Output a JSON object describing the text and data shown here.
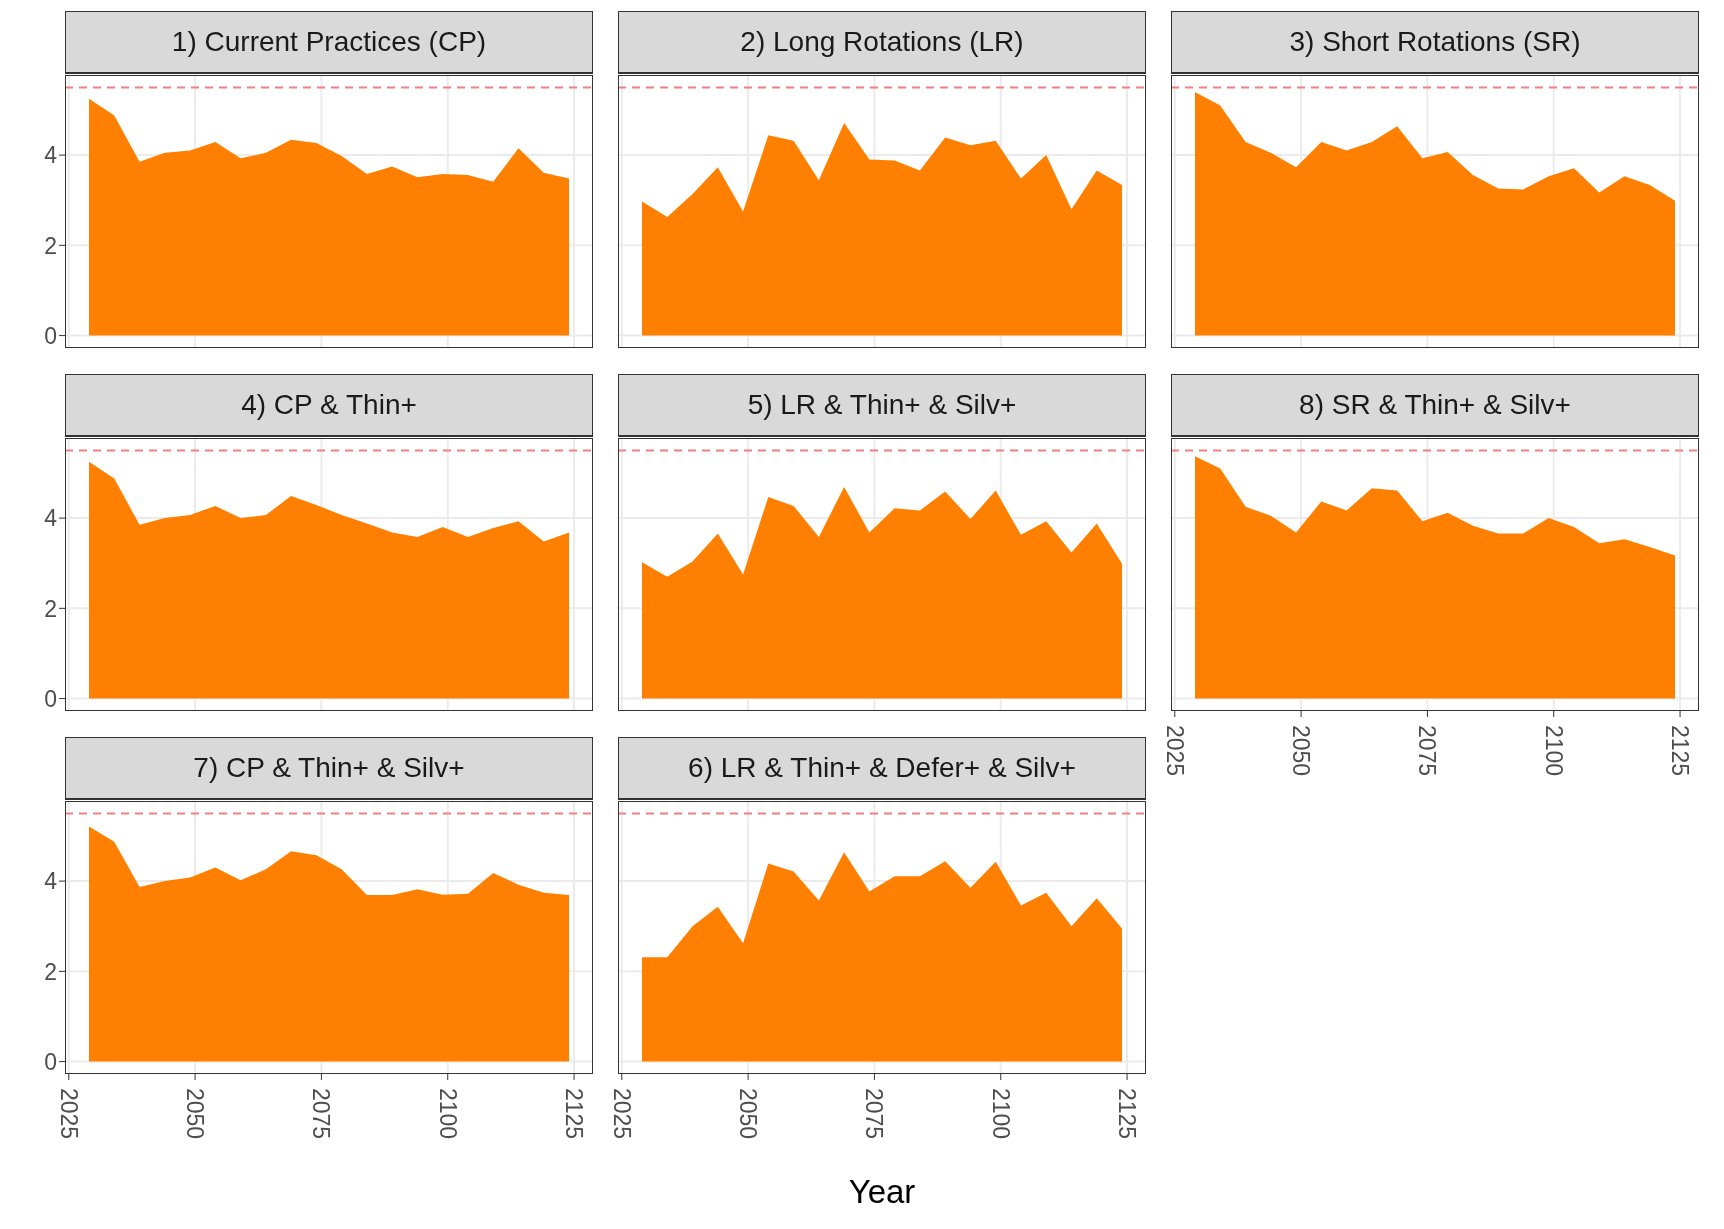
{
  "chart_data": [
    {
      "type": "area",
      "title": "1) Current Practices (CP)",
      "color": "#ff8000",
      "x": [
        2029,
        2034,
        2039,
        2044,
        2049,
        2054,
        2059,
        2064,
        2069,
        2074,
        2079,
        2084,
        2089,
        2094,
        2099,
        2104,
        2109,
        2114,
        2119,
        2124
      ],
      "values": [
        5.25,
        4.88,
        3.85,
        4.05,
        4.1,
        4.29,
        3.93,
        4.05,
        4.34,
        4.27,
        3.98,
        3.58,
        3.75,
        3.51,
        3.58,
        3.56,
        3.41,
        4.15,
        3.61,
        3.48
      ],
      "xlim": [
        2024.25,
        2128.75
      ],
      "ylim": [
        -0.275,
        5.775
      ],
      "xticks": [
        2025,
        2050,
        2075,
        2100,
        2125
      ],
      "yticks": [
        0,
        2,
        4
      ],
      "grid": true,
      "tick_labels": "y",
      "ref_lines": [
        {
          "axis": "y",
          "value": 5.5,
          "color": "#f08080",
          "line_style": "dashed"
        }
      ]
    },
    {
      "type": "area",
      "title": "2) Long Rotations (LR)",
      "color": "#ff8000",
      "x": [
        2029,
        2034,
        2039,
        2044,
        2049,
        2054,
        2059,
        2064,
        2069,
        2074,
        2079,
        2084,
        2089,
        2094,
        2099,
        2104,
        2109,
        2114,
        2119,
        2124
      ],
      "values": [
        2.97,
        2.63,
        3.14,
        3.73,
        2.75,
        4.44,
        4.32,
        3.44,
        4.71,
        3.9,
        3.88,
        3.66,
        4.39,
        4.22,
        4.32,
        3.48,
        4.0,
        2.8,
        3.66,
        3.34
      ],
      "xlim": [
        2024.25,
        2128.75
      ],
      "ylim": [
        -0.275,
        5.775
      ],
      "xticks": [
        2025,
        2050,
        2075,
        2100,
        2125
      ],
      "yticks": [
        0,
        2,
        4
      ],
      "grid": true,
      "tick_labels": false,
      "ref_lines": [
        {
          "axis": "y",
          "value": 5.5,
          "color": "#f08080",
          "line_style": "dashed"
        }
      ]
    },
    {
      "type": "area",
      "title": "3) Short Rotations (SR)",
      "color": "#ff8000",
      "x": [
        2029,
        2034,
        2039,
        2044,
        2049,
        2054,
        2059,
        2064,
        2069,
        2074,
        2079,
        2084,
        2089,
        2094,
        2099,
        2104,
        2109,
        2114,
        2119,
        2124
      ],
      "values": [
        5.4,
        5.1,
        4.29,
        4.05,
        3.73,
        4.29,
        4.1,
        4.29,
        4.64,
        3.93,
        4.07,
        3.56,
        3.26,
        3.24,
        3.53,
        3.71,
        3.17,
        3.53,
        3.34,
        2.99
      ],
      "xlim": [
        2024.25,
        2128.75
      ],
      "ylim": [
        -0.275,
        5.775
      ],
      "xticks": [
        2025,
        2050,
        2075,
        2100,
        2125
      ],
      "yticks": [
        0,
        2,
        4
      ],
      "grid": true,
      "tick_labels": false,
      "ref_lines": [
        {
          "axis": "y",
          "value": 5.5,
          "color": "#f08080",
          "line_style": "dashed"
        }
      ]
    },
    {
      "type": "area",
      "title": "4) CP & Thin+",
      "color": "#ff8000",
      "x": [
        2029,
        2034,
        2039,
        2044,
        2049,
        2054,
        2059,
        2064,
        2069,
        2074,
        2079,
        2084,
        2089,
        2094,
        2099,
        2104,
        2109,
        2114,
        2119,
        2124
      ],
      "values": [
        5.25,
        4.88,
        3.85,
        4.0,
        4.07,
        4.27,
        4.0,
        4.07,
        4.49,
        4.29,
        4.07,
        3.88,
        3.68,
        3.58,
        3.8,
        3.58,
        3.78,
        3.93,
        3.48,
        3.68
      ],
      "xlim": [
        2024.25,
        2128.75
      ],
      "ylim": [
        -0.275,
        5.775
      ],
      "xticks": [
        2025,
        2050,
        2075,
        2100,
        2125
      ],
      "yticks": [
        0,
        2,
        4
      ],
      "grid": true,
      "tick_labels": "y",
      "ref_lines": [
        {
          "axis": "y",
          "value": 5.5,
          "color": "#f08080",
          "line_style": "dashed"
        }
      ]
    },
    {
      "type": "area",
      "title": "5) LR & Thin+ & Silv+",
      "color": "#ff8000",
      "x": [
        2029,
        2034,
        2039,
        2044,
        2049,
        2054,
        2059,
        2064,
        2069,
        2074,
        2079,
        2084,
        2089,
        2094,
        2099,
        2104,
        2109,
        2114,
        2119,
        2124
      ],
      "values": [
        3.02,
        2.7,
        3.04,
        3.66,
        2.75,
        4.47,
        4.27,
        3.58,
        4.69,
        3.68,
        4.22,
        4.17,
        4.59,
        3.98,
        4.61,
        3.63,
        3.93,
        3.24,
        3.88,
        2.99
      ],
      "xlim": [
        2024.25,
        2128.75
      ],
      "ylim": [
        -0.275,
        5.775
      ],
      "xticks": [
        2025,
        2050,
        2075,
        2100,
        2125
      ],
      "yticks": [
        0,
        2,
        4
      ],
      "grid": true,
      "tick_labels": false,
      "ref_lines": [
        {
          "axis": "y",
          "value": 5.5,
          "color": "#f08080",
          "line_style": "dashed"
        }
      ]
    },
    {
      "type": "area",
      "title": "8) SR & Thin+ & Silv+",
      "color": "#ff8000",
      "x": [
        2029,
        2034,
        2039,
        2044,
        2049,
        2054,
        2059,
        2064,
        2069,
        2074,
        2079,
        2084,
        2089,
        2094,
        2099,
        2104,
        2109,
        2114,
        2119,
        2124
      ],
      "values": [
        5.37,
        5.1,
        4.25,
        4.05,
        3.68,
        4.37,
        4.17,
        4.66,
        4.61,
        3.93,
        4.12,
        3.83,
        3.66,
        3.66,
        4.0,
        3.8,
        3.44,
        3.53,
        3.36,
        3.17
      ],
      "xlim": [
        2024.25,
        2128.75
      ],
      "ylim": [
        -0.275,
        5.775
      ],
      "xticks": [
        2025,
        2050,
        2075,
        2100,
        2125
      ],
      "yticks": [
        0,
        2,
        4
      ],
      "grid": true,
      "tick_labels": "x",
      "ref_lines": [
        {
          "axis": "y",
          "value": 5.5,
          "color": "#f08080",
          "line_style": "dashed"
        }
      ]
    },
    {
      "type": "area",
      "title": "7) CP & Thin+ & Silv+",
      "color": "#ff8000",
      "x": [
        2029,
        2034,
        2039,
        2044,
        2049,
        2054,
        2059,
        2064,
        2069,
        2074,
        2079,
        2084,
        2089,
        2094,
        2099,
        2104,
        2109,
        2114,
        2119,
        2124
      ],
      "values": [
        5.21,
        4.87,
        3.87,
        4.0,
        4.08,
        4.3,
        4.02,
        4.26,
        4.66,
        4.57,
        4.26,
        3.69,
        3.69,
        3.82,
        3.7,
        3.72,
        4.18,
        3.92,
        3.74,
        3.69
      ],
      "xlim": [
        2024.25,
        2128.75
      ],
      "ylim": [
        -0.275,
        5.775
      ],
      "xticks": [
        2025,
        2050,
        2075,
        2100,
        2125
      ],
      "yticks": [
        0,
        2,
        4
      ],
      "grid": true,
      "ref_lines": [
        {
          "axis": "y",
          "value": 5.5,
          "color": "#f08080",
          "line_style": "dashed"
        }
      ]
    },
    {
      "type": "area",
      "title": "6) LR & Thin+ & Defer+ & Silv+",
      "xlabel": "Year",
      "color": "#ff8000",
      "x": [
        2029,
        2034,
        2039,
        2044,
        2049,
        2054,
        2059,
        2064,
        2069,
        2074,
        2079,
        2084,
        2089,
        2094,
        2099,
        2104,
        2109,
        2114,
        2119,
        2124
      ],
      "values": [
        2.31,
        2.31,
        3.0,
        3.43,
        2.62,
        4.39,
        4.21,
        3.57,
        4.64,
        3.77,
        4.11,
        4.11,
        4.44,
        3.85,
        4.43,
        3.46,
        3.74,
        3.0,
        3.62,
        2.95
      ],
      "xlim": [
        2024.25,
        2128.75
      ],
      "ylim": [
        -0.275,
        5.775
      ],
      "xticks": [
        2025,
        2050,
        2075,
        2100,
        2125
      ],
      "yticks": [
        0,
        2,
        4
      ],
      "grid": true,
      "tick_labels": "x",
      "ref_lines": [
        {
          "axis": "y",
          "value": 5.5,
          "color": "#f08080",
          "line_style": "dashed"
        }
      ]
    }
  ]
}
